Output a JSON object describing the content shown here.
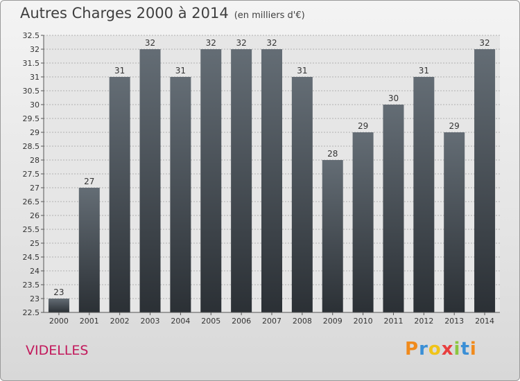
{
  "header": {
    "title": "Autres Charges 2000 à 2014",
    "subtitle": "(en milliers d'€)"
  },
  "footer": {
    "place": "VIDELLES",
    "logo": {
      "text": "Proxiti",
      "letter_colors": [
        "#f08a1c",
        "#3a8fd6",
        "#f0c419",
        "#e83e3e",
        "#8cc63f",
        "#3a8fd6",
        "#f08a1c"
      ]
    }
  },
  "colors": {
    "bar_top": "#646d75",
    "bar_bottom": "#2b3035",
    "grid": "#b0b0b0",
    "axis": "#555555",
    "place_text": "#c2185b"
  },
  "chart_data": {
    "type": "bar",
    "title": "Autres Charges 2000 à 2014",
    "subtitle": "(en milliers d'€)",
    "xlabel": "",
    "ylabel": "",
    "categories": [
      "2000",
      "2001",
      "2002",
      "2003",
      "2004",
      "2005",
      "2006",
      "2007",
      "2008",
      "2009",
      "2010",
      "2011",
      "2012",
      "2013",
      "2014"
    ],
    "values": [
      23,
      27,
      31,
      32,
      31,
      32,
      32,
      32,
      31,
      28,
      29,
      30,
      31,
      29,
      32
    ],
    "data_labels": [
      "23",
      "27",
      "31",
      "32",
      "31",
      "32",
      "32",
      "32",
      "31",
      "28",
      "29",
      "30",
      "31",
      "29",
      "32"
    ],
    "ylim": [
      22.5,
      32.5
    ],
    "yticks": [
      "22.5",
      "23",
      "23.5",
      "24",
      "24.5",
      "25",
      "25.5",
      "26",
      "26.5",
      "27",
      "27.5",
      "28",
      "28.5",
      "29",
      "29.5",
      "30",
      "30.5",
      "31",
      "31.5",
      "32",
      "32.5"
    ],
    "grid": true,
    "legend": "none"
  }
}
